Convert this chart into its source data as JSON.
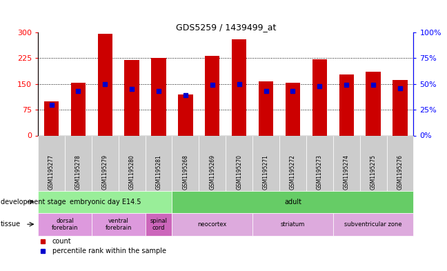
{
  "title": "GDS5259 / 1439499_at",
  "samples": [
    "GSM1195277",
    "GSM1195278",
    "GSM1195279",
    "GSM1195280",
    "GSM1195281",
    "GSM1195268",
    "GSM1195269",
    "GSM1195270",
    "GSM1195271",
    "GSM1195272",
    "GSM1195273",
    "GSM1195274",
    "GSM1195275",
    "GSM1195276"
  ],
  "counts": [
    100,
    153,
    297,
    220,
    226,
    120,
    232,
    280,
    158,
    153,
    222,
    178,
    185,
    162
  ],
  "percentile_ranks": [
    30,
    43,
    50,
    45,
    43,
    39,
    49,
    50,
    43,
    43,
    48,
    49,
    49,
    46
  ],
  "bar_color": "#cc0000",
  "square_color": "#0000cc",
  "ylim_left": [
    0,
    300
  ],
  "ylim_right": [
    0,
    100
  ],
  "yticks_left": [
    0,
    75,
    150,
    225,
    300
  ],
  "yticks_right": [
    0,
    25,
    50,
    75,
    100
  ],
  "ytick_labels_left": [
    "0",
    "75",
    "150",
    "225",
    "300"
  ],
  "ytick_labels_right": [
    "0%",
    "25%",
    "50%",
    "75%",
    "100%"
  ],
  "development_stages": [
    {
      "label": "embryonic day E14.5",
      "start": 0,
      "end": 5,
      "color": "#99ee99"
    },
    {
      "label": "adult",
      "start": 5,
      "end": 14,
      "color": "#66cc66"
    }
  ],
  "tissues": [
    {
      "label": "dorsal\nforebrain",
      "start": 0,
      "end": 2,
      "color": "#dd99dd"
    },
    {
      "label": "ventral\nforebrain",
      "start": 2,
      "end": 4,
      "color": "#dd99dd"
    },
    {
      "label": "spinal\ncord",
      "start": 4,
      "end": 5,
      "color": "#cc66bb"
    },
    {
      "label": "neocortex",
      "start": 5,
      "end": 8,
      "color": "#ddaadd"
    },
    {
      "label": "striatum",
      "start": 8,
      "end": 11,
      "color": "#ddaadd"
    },
    {
      "label": "subventricular zone",
      "start": 11,
      "end": 14,
      "color": "#ddaadd"
    }
  ],
  "dev_stage_label": "development stage",
  "tissue_label": "tissue",
  "legend_count_label": "count",
  "legend_pct_label": "percentile rank within the sample",
  "col_bg_color": "#cccccc",
  "plot_bg": "#ffffff",
  "grid_color": "#000000"
}
